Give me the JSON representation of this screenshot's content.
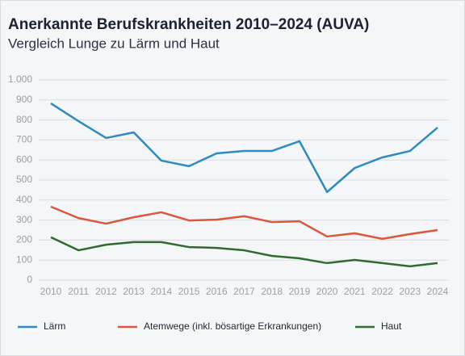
{
  "chart_data": {
    "type": "line",
    "title": "Anerkannte Berufskrankheiten 2010–2024 (AUVA)",
    "subtitle": "Vergleich Lunge zu Lärm und Haut",
    "categories": [
      "2010",
      "2011",
      "2012",
      "2013",
      "2014",
      "2015",
      "2016",
      "2017",
      "2018",
      "2019",
      "2020",
      "2021",
      "2022",
      "2023",
      "2024"
    ],
    "series": [
      {
        "name": "Lärm",
        "color": "#2e8bc0",
        "values": [
          883,
          794,
          710,
          738,
          597,
          569,
          633,
          645,
          645,
          694,
          440,
          560,
          613,
          645,
          762
        ]
      },
      {
        "name": "Atemwege (inkl. bösartige Erkrankungen)",
        "color": "#d9583b",
        "values": [
          367,
          310,
          282,
          314,
          339,
          298,
          302,
          319,
          290,
          294,
          218,
          234,
          206,
          230,
          250
        ]
      },
      {
        "name": "Haut",
        "color": "#2f6b2f",
        "values": [
          214,
          149,
          177,
          190,
          190,
          165,
          161,
          149,
          121,
          109,
          85,
          101,
          85,
          69,
          85
        ]
      }
    ],
    "ylim": [
      0,
      1000
    ],
    "yticks": [
      0,
      100,
      200,
      300,
      400,
      500,
      600,
      700,
      800,
      900,
      {
        "value": 1000,
        "label": "1.000"
      }
    ],
    "grid": true,
    "legend": "bottom"
  }
}
